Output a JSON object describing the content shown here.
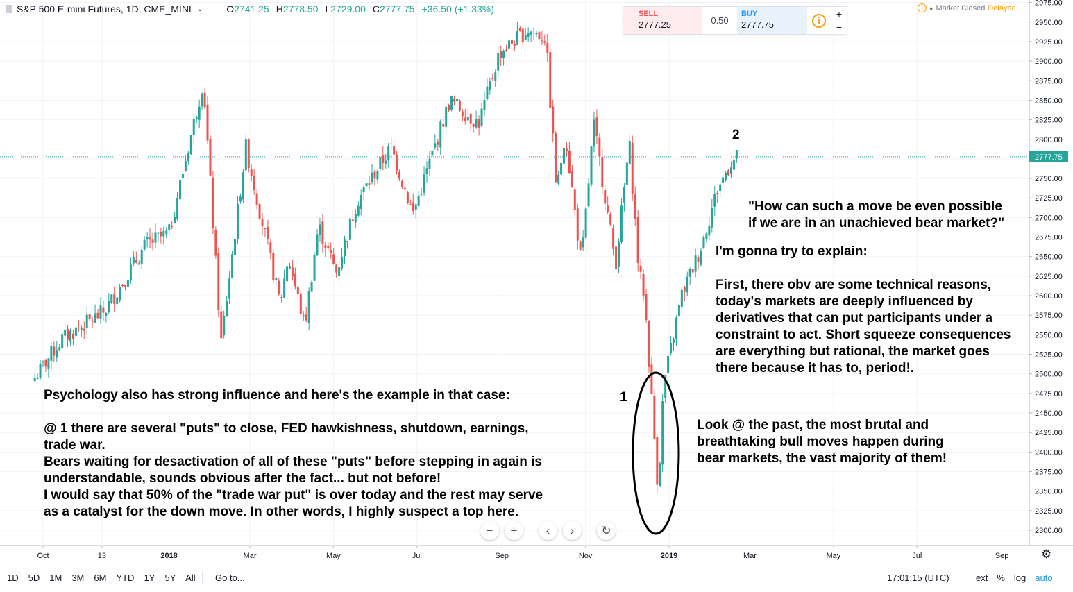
{
  "header": {
    "symbol": "S&P 500 E-mini Futures, 1D, CME_MINI",
    "symbol_icon": "chart-icon",
    "open_label": "O",
    "open": "2741.25",
    "high_label": "H",
    "high": "2778.50",
    "low_label": "L",
    "low": "2729.00",
    "close_label": "C",
    "close": "2777.75",
    "change": "+36.50 (+1.33%)"
  },
  "trade_panel": {
    "sell_label": "SELL",
    "sell_price": "2777.25",
    "spread": "0.50",
    "buy_label": "BUY",
    "buy_price": "2777.75",
    "info_icon": "i",
    "plus": "+",
    "minus": "−"
  },
  "market_status": {
    "icon": "!",
    "text": "Market Closed",
    "delayed": "Delayed"
  },
  "annotations": {
    "label_1": "1",
    "label_2": "2",
    "question": [
      "\"How can such a move be even possible",
      "if we are in an unachieved bear market?\""
    ],
    "explain": "I'm gonna try to explain:",
    "technical": [
      "First, there obv are some technical reasons,",
      "today's markets are deeply influenced by",
      "derivatives that can put participants under a",
      "constraint to act. Short squeeze consequences",
      "are everything but rational, the market goes",
      "there because it has to, period!."
    ],
    "past": [
      "Look @ the past, the most brutal and",
      "breathtaking bull moves happen during",
      "bear markets, the vast majority of them!"
    ],
    "psychology": [
      "Psychology also has strong influence and here's the example in that case:",
      "",
      "@ 1 there are several \"puts\" to close, FED hawkishness, shutdown, earnings,",
      "trade war.",
      "Bears waiting for desactivation of all of these \"puts\" before stepping in again is",
      "understandable, sounds obvious after the fact... but not before!",
      "I would say that 50% of the \"trade war put\" is over today and the rest may serve",
      "as a catalyst for the down move. In other words, I highly suspect a top here."
    ]
  },
  "zoom_controls": [
    {
      "name": "zoom-out-button",
      "glyph": "−"
    },
    {
      "name": "zoom-in-button",
      "glyph": "+"
    },
    {
      "name": "scroll-left-button",
      "glyph": "‹"
    },
    {
      "name": "scroll-right-button",
      "glyph": "›"
    },
    {
      "name": "reset-button",
      "glyph": "↻"
    }
  ],
  "bottom_bar": {
    "ranges": [
      "1D",
      "5D",
      "1M",
      "3M",
      "6M",
      "YTD",
      "1Y",
      "5Y",
      "All"
    ],
    "goto": "Go to...",
    "time": "17:01:15 (UTC)",
    "options": [
      "ext",
      "%",
      "log",
      "auto"
    ],
    "settings_icon": "gear-icon"
  },
  "colors": {
    "up": "#26a69a",
    "down": "#ef5350",
    "last_price_line": "#26a69a"
  },
  "chart_data": {
    "type": "candlestick",
    "title": "S&P 500 E-mini Futures, 1D, CME_MINI",
    "last_price": 2777.75,
    "ylim": [
      2280,
      2975
    ],
    "y_ticks": [
      2300,
      2325,
      2350,
      2375,
      2400,
      2425,
      2450,
      2475,
      2500,
      2525,
      2550,
      2575,
      2600,
      2625,
      2650,
      2675,
      2700,
      2725,
      2750,
      2775,
      2800,
      2825,
      2850,
      2875,
      2900,
      2925,
      2950,
      2975
    ],
    "x_labels": [
      "Oct",
      "13",
      "2018",
      "Mar",
      "May",
      "Jul",
      "Sep",
      "Nov",
      "2019",
      "Mar",
      "May",
      "Jul",
      "Sep"
    ],
    "price_path": [
      [
        "2017-09-25",
        2495
      ],
      [
        "2017-10-15",
        2545
      ],
      [
        "2017-11-15",
        2580
      ],
      [
        "2017-12-15",
        2665
      ],
      [
        "2018-01-01",
        2680
      ],
      [
        "2018-01-26",
        2875
      ],
      [
        "2018-02-08",
        2540
      ],
      [
        "2018-02-26",
        2790
      ],
      [
        "2018-03-23",
        2590
      ],
      [
        "2018-03-29",
        2650
      ],
      [
        "2018-04-10",
        2560
      ],
      [
        "2018-04-20",
        2690
      ],
      [
        "2018-05-03",
        2630
      ],
      [
        "2018-05-18",
        2720
      ],
      [
        "2018-06-12",
        2790
      ],
      [
        "2018-06-28",
        2705
      ],
      [
        "2018-07-25",
        2850
      ],
      [
        "2018-08-15",
        2820
      ],
      [
        "2018-08-30",
        2910
      ],
      [
        "2018-09-20",
        2940
      ],
      [
        "2018-10-03",
        2930
      ],
      [
        "2018-10-11",
        2730
      ],
      [
        "2018-10-17",
        2810
      ],
      [
        "2018-10-29",
        2640
      ],
      [
        "2018-11-07",
        2820
      ],
      [
        "2018-11-23",
        2640
      ],
      [
        "2018-12-03",
        2795
      ],
      [
        "2018-12-10",
        2630
      ],
      [
        "2018-12-14",
        2600
      ],
      [
        "2018-12-24",
        2350
      ],
      [
        "2018-12-28",
        2485
      ],
      [
        "2019-01-10",
        2600
      ],
      [
        "2019-01-24",
        2660
      ],
      [
        "2019-02-05",
        2735
      ],
      [
        "2019-02-15",
        2770
      ],
      [
        "2019-02-20",
        2778
      ]
    ],
    "marked_points": [
      {
        "label": "1",
        "date": "2018-12-24",
        "price": 2346
      },
      {
        "label": "2",
        "date": "2019-02-20",
        "price": 2778
      }
    ]
  }
}
